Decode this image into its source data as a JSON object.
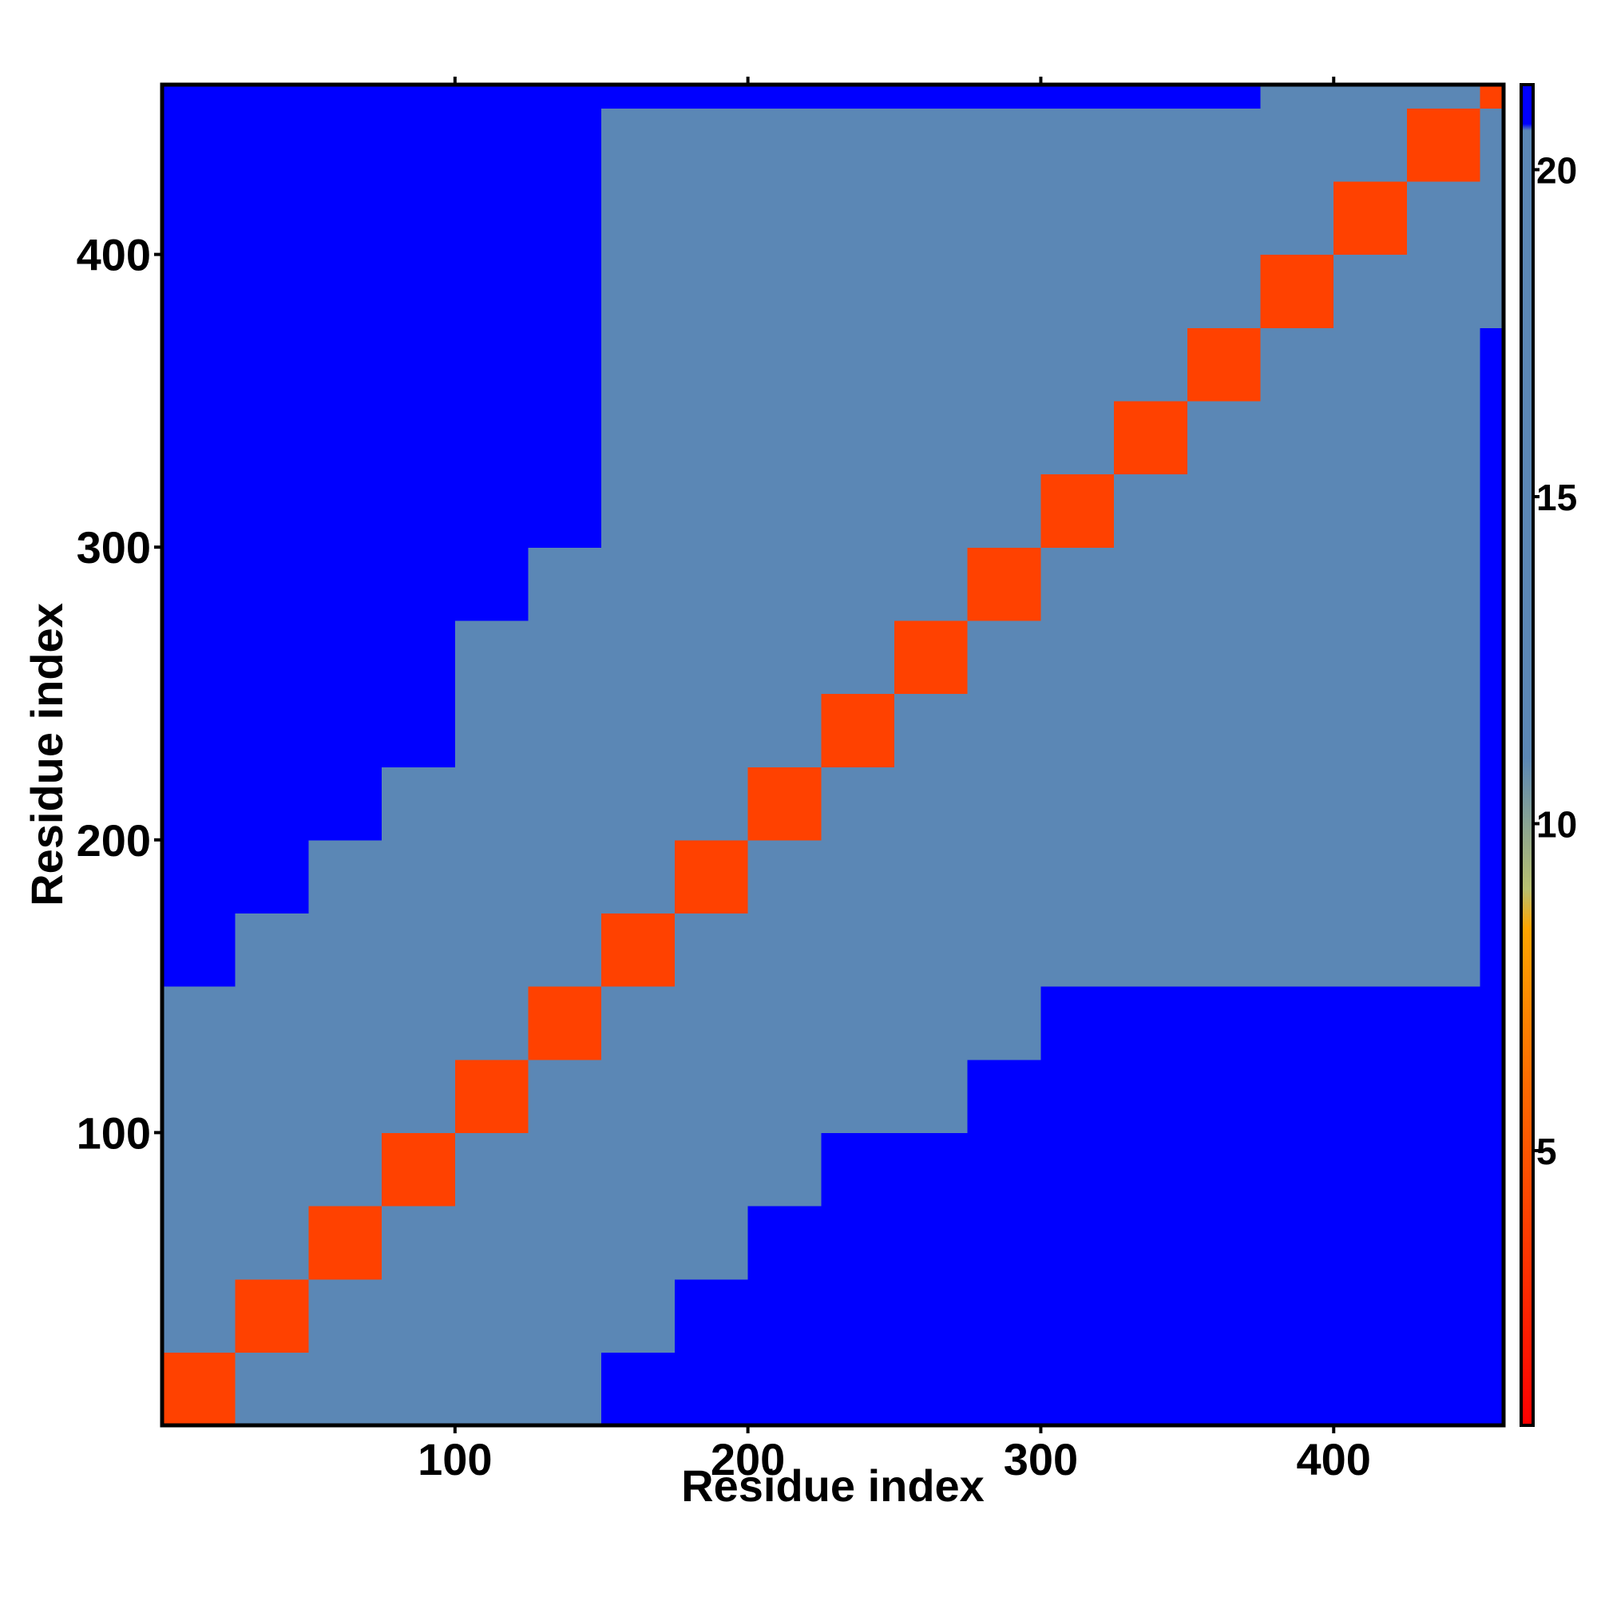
{
  "chart_data": {
    "type": "heatmap",
    "x_label": "Residue index",
    "y_label": "Residue index",
    "xlim": [
      0,
      458
    ],
    "ylim": [
      0,
      458
    ],
    "xticks": [
      100,
      200,
      300,
      400
    ],
    "yticks": [
      100,
      200,
      300,
      400
    ],
    "x_bins": [
      0,
      25,
      50,
      75,
      100,
      125,
      150,
      175,
      200,
      225,
      250,
      275,
      300,
      325,
      350,
      375,
      400,
      425,
      450,
      458
    ],
    "y_bins": [
      0,
      25,
      50,
      75,
      100,
      125,
      150,
      175,
      200,
      225,
      250,
      275,
      300,
      325,
      350,
      375,
      400,
      425,
      450,
      458
    ],
    "z": [
      [
        4,
        11,
        17,
        17,
        17,
        17,
        22,
        22,
        22,
        22,
        22,
        22,
        22,
        22,
        22,
        22,
        22,
        22,
        22
      ],
      [
        11,
        4,
        11,
        17,
        17,
        17,
        19,
        22,
        22,
        22,
        22,
        22,
        22,
        22,
        22,
        22,
        22,
        22,
        22
      ],
      [
        17,
        11,
        4,
        11,
        17,
        17,
        19,
        19,
        22,
        22,
        22,
        22,
        22,
        22,
        22,
        22,
        22,
        22,
        22
      ],
      [
        17,
        17,
        11,
        4,
        11,
        17,
        19,
        19,
        19,
        22,
        22,
        22,
        22,
        22,
        22,
        22,
        22,
        22,
        22
      ],
      [
        17,
        17,
        17,
        11,
        4,
        11,
        17,
        19,
        19,
        19,
        19,
        22,
        22,
        22,
        22,
        22,
        22,
        22,
        22
      ],
      [
        17,
        17,
        17,
        17,
        11,
        4,
        17,
        17,
        19,
        19,
        19,
        19,
        22,
        22,
        22,
        22,
        22,
        22,
        22
      ],
      [
        22,
        19,
        19,
        19,
        17,
        17,
        4,
        11,
        17,
        17,
        17,
        19,
        19,
        19,
        19,
        19,
        19,
        19,
        22
      ],
      [
        22,
        22,
        19,
        19,
        19,
        17,
        11,
        4,
        11,
        17,
        17,
        17,
        19,
        19,
        19,
        19,
        19,
        19,
        22
      ],
      [
        22,
        22,
        22,
        19,
        19,
        19,
        17,
        11,
        4,
        11,
        17,
        17,
        17,
        19,
        19,
        19,
        19,
        19,
        22
      ],
      [
        22,
        22,
        22,
        22,
        19,
        19,
        17,
        17,
        11,
        4,
        11,
        17,
        17,
        17,
        19,
        19,
        19,
        19,
        22
      ],
      [
        22,
        22,
        22,
        22,
        19,
        19,
        17,
        17,
        17,
        11,
        4,
        11,
        17,
        17,
        17,
        17,
        17,
        17,
        22
      ],
      [
        22,
        22,
        22,
        22,
        22,
        19,
        19,
        17,
        17,
        17,
        11,
        4,
        11,
        17,
        17,
        17,
        17,
        17,
        22
      ],
      [
        22,
        22,
        22,
        22,
        22,
        22,
        19,
        19,
        17,
        17,
        17,
        11,
        4,
        11,
        17,
        17,
        17,
        17,
        22
      ],
      [
        22,
        22,
        22,
        22,
        22,
        22,
        19,
        19,
        19,
        17,
        17,
        17,
        11,
        4,
        11,
        17,
        17,
        17,
        22
      ],
      [
        22,
        22,
        22,
        22,
        22,
        22,
        19,
        19,
        19,
        19,
        17,
        17,
        17,
        11,
        4,
        11,
        17,
        17,
        22
      ],
      [
        22,
        22,
        22,
        22,
        22,
        22,
        19,
        19,
        19,
        19,
        17,
        17,
        17,
        17,
        11,
        4,
        11,
        17,
        17
      ],
      [
        22,
        22,
        22,
        22,
        22,
        22,
        19,
        19,
        19,
        19,
        17,
        17,
        17,
        17,
        17,
        11,
        4,
        11,
        17
      ],
      [
        22,
        22,
        22,
        22,
        22,
        22,
        19,
        19,
        19,
        19,
        17,
        17,
        17,
        17,
        17,
        17,
        11,
        4,
        11
      ],
      [
        22,
        22,
        22,
        22,
        22,
        22,
        22,
        22,
        22,
        22,
        22,
        22,
        22,
        22,
        22,
        17,
        17,
        11,
        4
      ]
    ],
    "clim": [
      0.8,
      21.3
    ],
    "cticks": [
      5,
      10,
      15,
      20
    ],
    "colorscale": [
      {
        "value": 0.8,
        "color": "#ff0000"
      },
      {
        "value": 6,
        "color": "#ff6a00"
      },
      {
        "value": 8.4,
        "color": "#ffa500"
      },
      {
        "value": 9,
        "color": "#b8c070"
      },
      {
        "value": 11,
        "color": "#5b87b5"
      },
      {
        "value": 20.6,
        "color": "#5b87b5"
      },
      {
        "value": 20.7,
        "color": "#0000ff"
      },
      {
        "value": 21.3,
        "color": "#0000ff"
      }
    ]
  }
}
